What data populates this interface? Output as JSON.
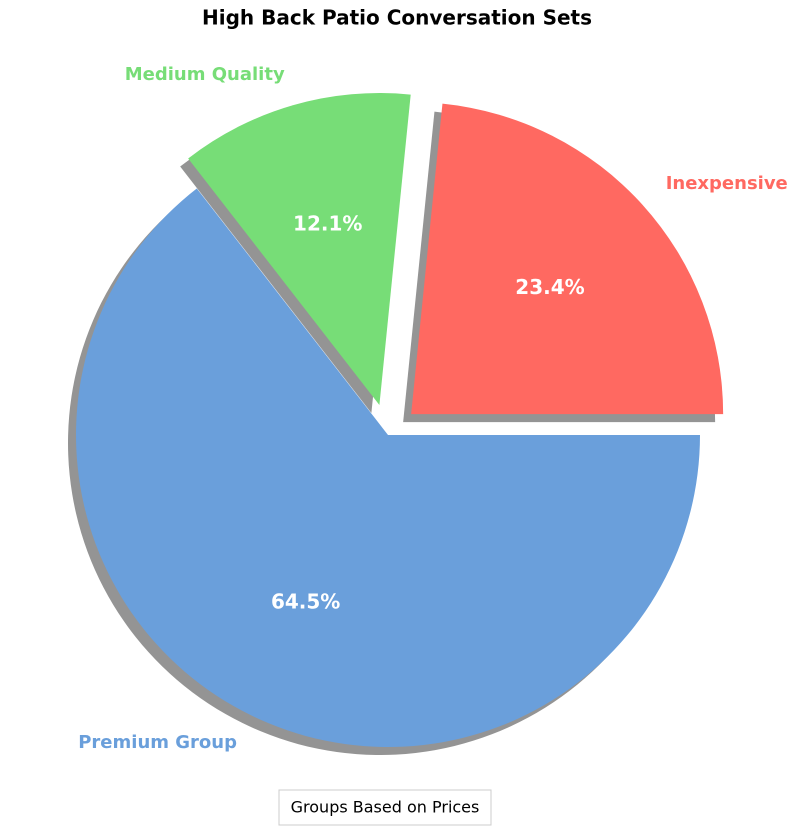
{
  "chart_data": {
    "type": "pie",
    "title": "High Back Patio Conversation Sets",
    "categories": [
      "Inexpensive",
      "Medium Quality",
      "Premium Group"
    ],
    "values": [
      23.4,
      12.1,
      64.5
    ],
    "value_labels": [
      "23.4%",
      "12.1%",
      "64.5%"
    ],
    "colors": [
      "#ff6961",
      "#77dd77",
      "#6a9fdb"
    ],
    "explode": [
      0.1,
      0.1,
      0
    ],
    "shadow": true,
    "legend_title": "Groups Based on Prices",
    "legend_position": "bottom"
  }
}
